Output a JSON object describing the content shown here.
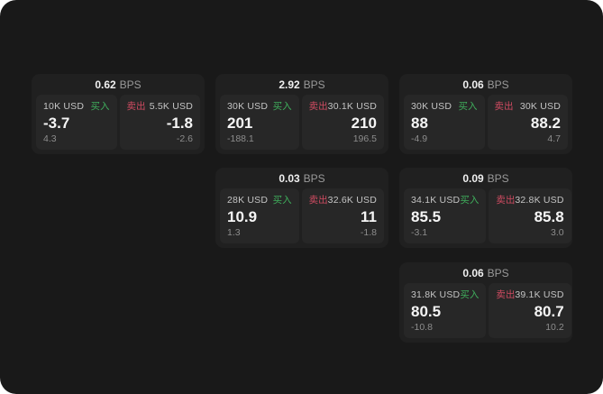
{
  "labels": {
    "bps_suffix": "BPS",
    "buy": "买入",
    "sell": "卖出"
  },
  "colors": {
    "page_bg": "#191919",
    "card_bg": "#202020",
    "panel_bg": "#272727",
    "buy_green": "#3fae5c",
    "sell_red": "#cf4b61",
    "value_white": "#f5f5f5",
    "label_gray": "#c4c4c4",
    "muted_gray": "#8d8d8d"
  },
  "cards": [
    {
      "bps": "0.62",
      "buy": {
        "size": "10K USD",
        "price": "-3.7",
        "delta": "4.3"
      },
      "sell": {
        "size": "5.5K USD",
        "price": "-1.8",
        "delta": "-2.6"
      }
    },
    {
      "bps": "2.92",
      "buy": {
        "size": "30K USD",
        "price": "201",
        "delta": "-188.1"
      },
      "sell": {
        "size": "30.1K USD",
        "price": "210",
        "delta": "196.5"
      }
    },
    {
      "bps": "0.06",
      "buy": {
        "size": "30K USD",
        "price": "88",
        "delta": "-4.9"
      },
      "sell": {
        "size": "30K USD",
        "price": "88.2",
        "delta": "4.7"
      }
    },
    {
      "bps": "0.03",
      "buy": {
        "size": "28K USD",
        "price": "10.9",
        "delta": "1.3"
      },
      "sell": {
        "size": "32.6K USD",
        "price": "11",
        "delta": "-1.8"
      }
    },
    {
      "bps": "0.09",
      "buy": {
        "size": "34.1K USD",
        "price": "85.5",
        "delta": "-3.1"
      },
      "sell": {
        "size": "32.8K USD",
        "price": "85.8",
        "delta": "3.0"
      }
    },
    {
      "bps": "0.06",
      "buy": {
        "size": "31.8K USD",
        "price": "80.5",
        "delta": "-10.8"
      },
      "sell": {
        "size": "39.1K USD",
        "price": "80.7",
        "delta": "10.2"
      }
    }
  ]
}
